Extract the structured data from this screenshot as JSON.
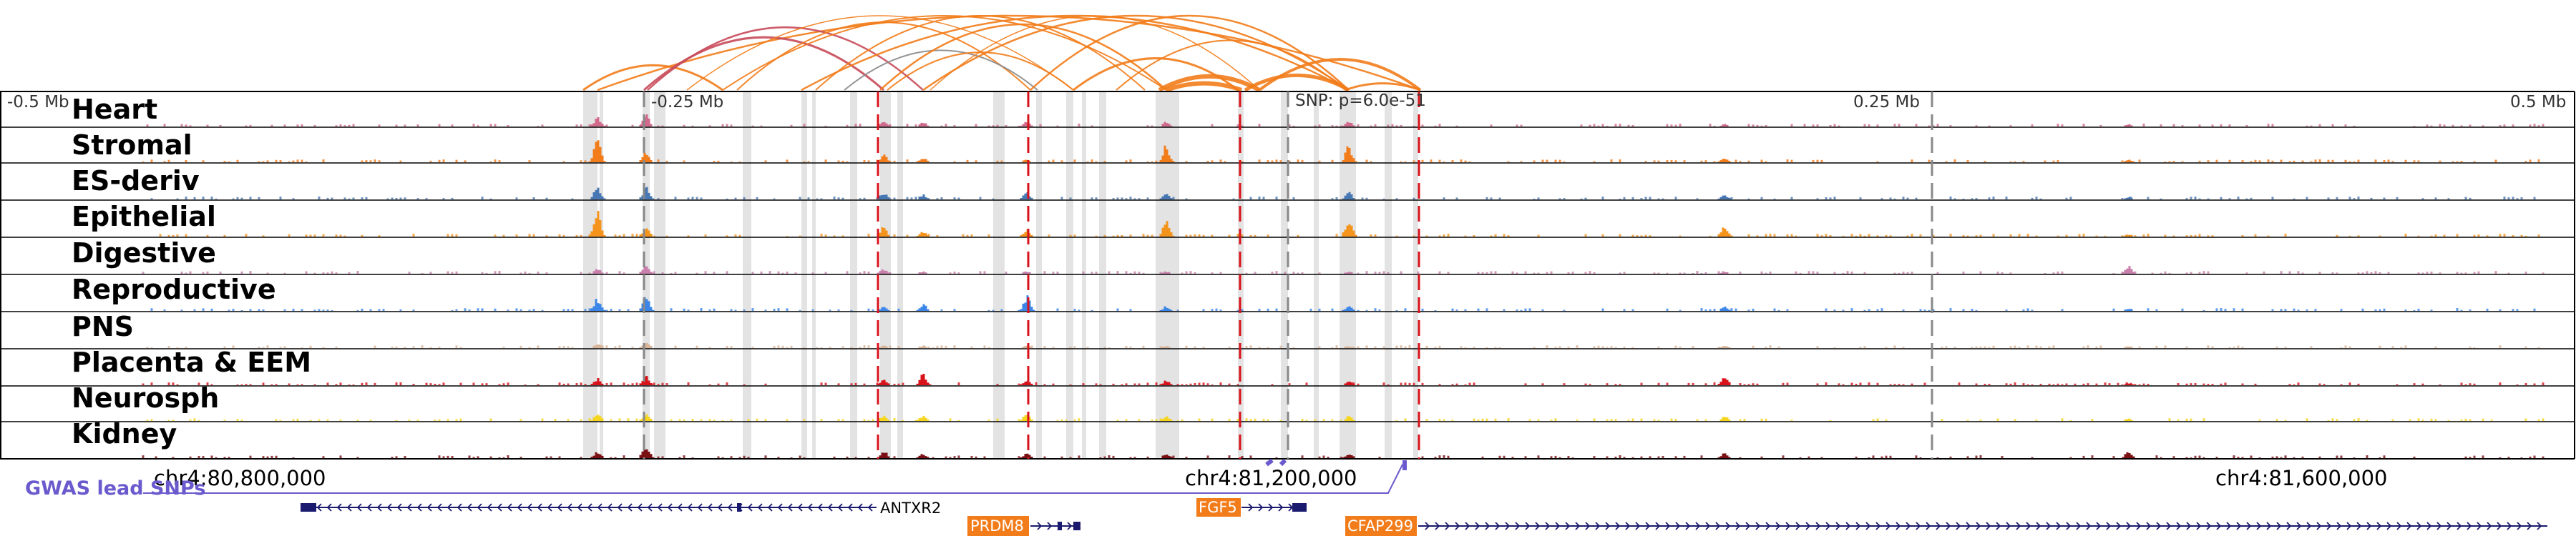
{
  "axis_labels": {
    "left": "-0.5 Mb",
    "mid_left": "-0.25 Mb",
    "snp": "SNP: p=6.0e-51",
    "mid_right": "0.25 Mb",
    "right": "0.5 Mb"
  },
  "tracks": [
    {
      "label": "Heart",
      "color": "#d0698a"
    },
    {
      "label": "Stromal",
      "color": "#f27c1a"
    },
    {
      "label": "ES-deriv",
      "color": "#4878b4"
    },
    {
      "label": "Epithelial",
      "color": "#f5941d"
    },
    {
      "label": "Digestive",
      "color": "#c97fab"
    },
    {
      "label": "Reproductive",
      "color": "#3b86e8"
    },
    {
      "label": "PNS",
      "color": "#d9b59a"
    },
    {
      "label": "Placenta & EEM",
      "color": "#d8121b"
    },
    {
      "label": "Neurosph",
      "color": "#f5d51e"
    },
    {
      "label": "Kidney",
      "color": "#7a1014"
    }
  ],
  "coordinates": {
    "c1": "chr4:80,800,000",
    "c2": "chr4:81,200,000",
    "c3": "chr4:81,600,000"
  },
  "gwas": {
    "label": "GWAS lead SNPs",
    "color": "#6a5acd"
  },
  "genes": [
    {
      "name": "ANTXR2",
      "strand": "-"
    },
    {
      "name": "PRDM8",
      "strand": "+",
      "highlight": true
    },
    {
      "name": "FGF5",
      "strand": "+",
      "highlight": true
    },
    {
      "name": "CFAP299",
      "strand": "+",
      "highlight": true
    }
  ],
  "colors": {
    "loop_primary": "#f27c1a",
    "loop_secondary": "#c84a5a",
    "loop_gray": "#888888",
    "highlight_band": "#e3e3e3",
    "snp_marker": "#d8121b",
    "gene_body": "#1a1a6e",
    "gene_box": "#f27c1a"
  }
}
